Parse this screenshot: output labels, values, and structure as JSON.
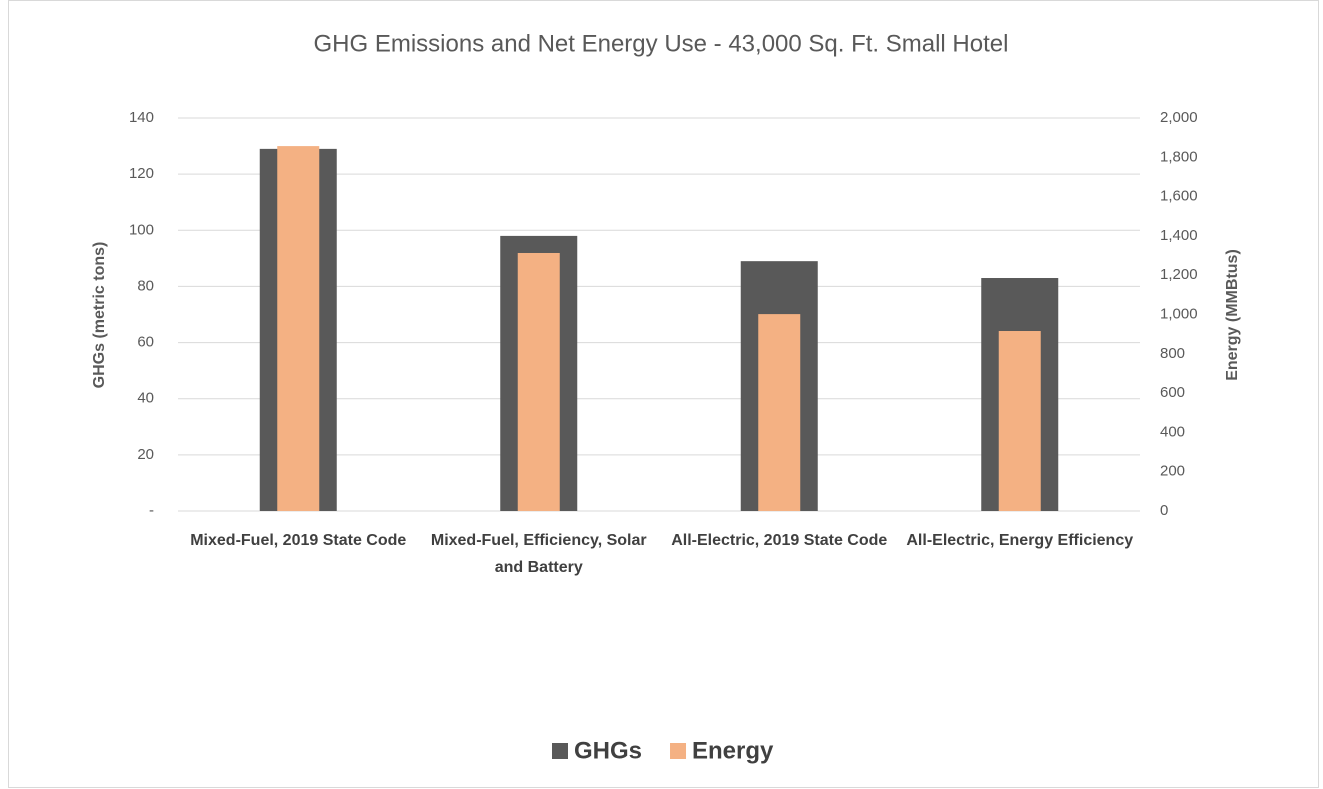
{
  "chart_data": {
    "type": "bar",
    "title": "GHG Emissions and Net Energy Use - 43,000 Sq. Ft. Small Hotel",
    "categories": [
      "Mixed-Fuel, 2019 State Code",
      "Mixed-Fuel, Efficiency, Solar and Battery",
      "All-Electric, 2019 State Code",
      "All-Electric, Energy Efficiency"
    ],
    "y_label": "GHGs (metric tons)",
    "y2_label": "Energy (MMBtus)",
    "series": [
      {
        "name": "GHGs",
        "color": "#595959",
        "values": [
          129,
          98,
          89,
          83
        ]
      },
      {
        "name": "Energy",
        "color": "#f4b183",
        "axis": "y2",
        "values": [
          1857,
          1313,
          1002,
          916
        ]
      }
    ],
    "ylim": [
      0,
      140
    ],
    "yticks": [
      {
        "value": 0,
        "label": "-"
      },
      20,
      40,
      60,
      80,
      100,
      120,
      140
    ],
    "y2lim": [
      0,
      2000
    ],
    "y2ticks": [
      0,
      200,
      400,
      600,
      800,
      {
        "value": 1000,
        "label": "1,000"
      },
      {
        "value": 1200,
        "label": "1,200"
      },
      {
        "value": 1400,
        "label": "1,400"
      },
      {
        "value": 1600,
        "label": "1,600"
      },
      {
        "value": 1800,
        "label": "1,800"
      },
      {
        "value": 2000,
        "label": "2,000"
      }
    ],
    "grid": true,
    "legend": "bottom"
  }
}
